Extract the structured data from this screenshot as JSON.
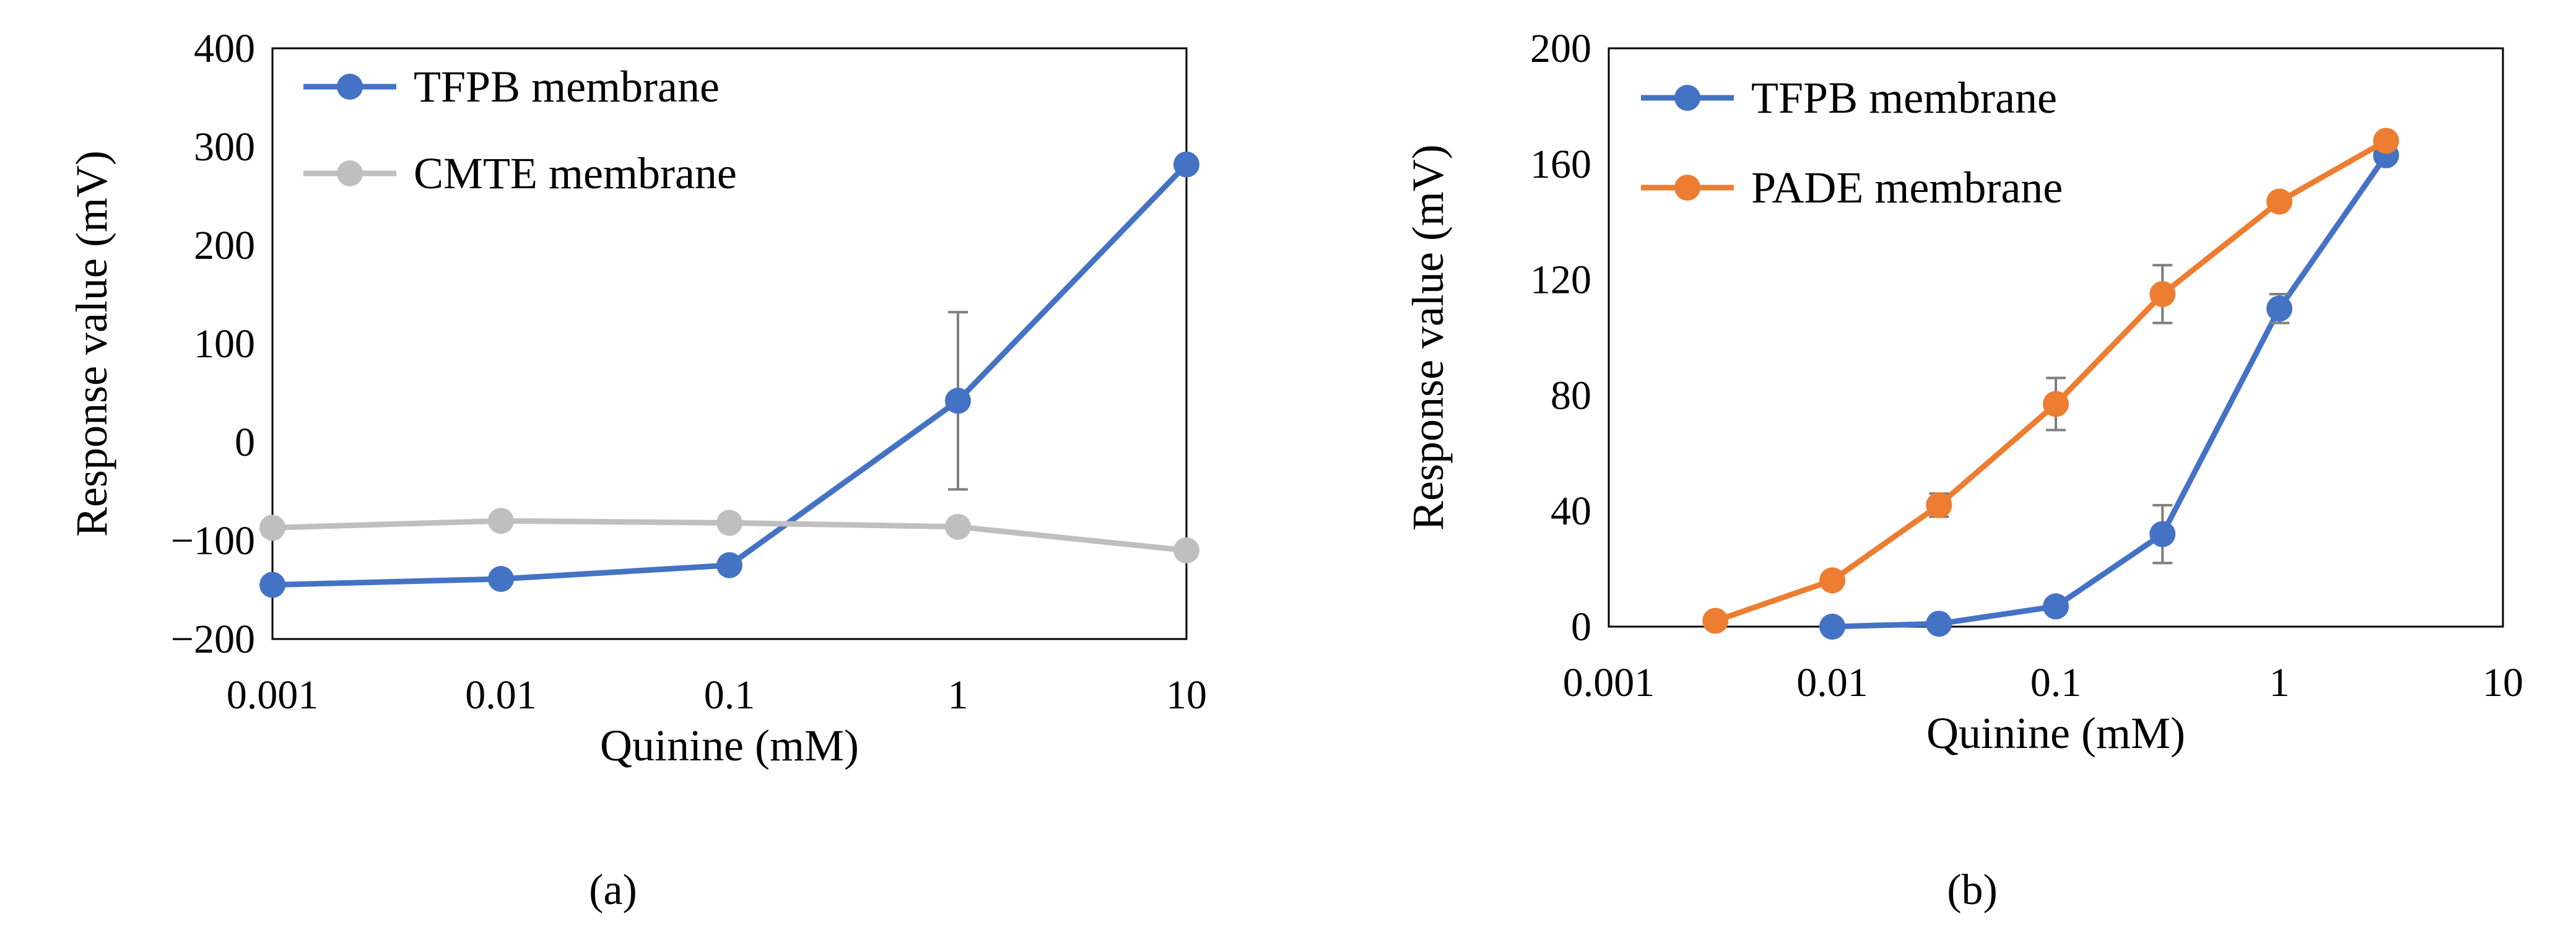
{
  "chart_data": [
    {
      "type": "line",
      "panel_label": "(a)",
      "xscale": "log",
      "xlabel": "Quinine (mM)",
      "ylabel": "Response value (mV)",
      "xlim": [
        0.001,
        10
      ],
      "ylim": [
        -200,
        400
      ],
      "xticks": [
        0.001,
        0.01,
        0.1,
        1,
        10
      ],
      "xtick_labels": [
        "0.001",
        "0.01",
        "0.1",
        "1",
        "10"
      ],
      "yticks": [
        -200,
        -100,
        0,
        100,
        200,
        300,
        400
      ],
      "ytick_labels": [
        "−200",
        "−100",
        "0",
        "100",
        "200",
        "300",
        "400"
      ],
      "grid": false,
      "legend_position": "top-left",
      "series": [
        {
          "name": "TFPB membrane",
          "color": "#4472C4",
          "x": [
            0.001,
            0.01,
            0.1,
            1,
            10
          ],
          "y": [
            -145,
            -139,
            -125,
            42,
            282
          ],
          "err": [
            4,
            5,
            3,
            90,
            0
          ]
        },
        {
          "name": "CMTE membrane",
          "color": "#BFBFBF",
          "x": [
            0.001,
            0.01,
            0.1,
            1,
            10
          ],
          "y": [
            -87,
            -80,
            -82,
            -86,
            -110
          ],
          "err": [
            0,
            0,
            0,
            0,
            0
          ]
        }
      ]
    },
    {
      "type": "line",
      "panel_label": "(b)",
      "xscale": "log",
      "xlabel": "Quinine (mM)",
      "ylabel": "Response value (mV)",
      "xlim": [
        0.001,
        10
      ],
      "ylim": [
        0,
        200
      ],
      "xticks": [
        0.001,
        0.01,
        0.1,
        1,
        10
      ],
      "xtick_labels": [
        "0.001",
        "0.01",
        "0.1",
        "1",
        "10"
      ],
      "yticks": [
        0,
        40,
        80,
        120,
        160,
        200
      ],
      "ytick_labels": [
        "0",
        "40",
        "80",
        "120",
        "160",
        "200"
      ],
      "grid": false,
      "legend_position": "top-left",
      "series": [
        {
          "name": "TFPB membrane",
          "color": "#4472C4",
          "x": [
            0.01,
            0.03,
            0.1,
            0.3,
            1,
            3
          ],
          "y": [
            0,
            1,
            7,
            32,
            110,
            163
          ],
          "err": [
            0,
            0,
            0,
            10,
            5,
            0
          ]
        },
        {
          "name": "PADE membrane",
          "color": "#ED7D31",
          "x": [
            0.003,
            0.01,
            0.03,
            0.1,
            0.3,
            1,
            3
          ],
          "y": [
            2,
            16,
            42,
            77,
            115,
            147,
            168
          ],
          "err": [
            0,
            0,
            4,
            9,
            10,
            2,
            0
          ]
        }
      ]
    }
  ]
}
